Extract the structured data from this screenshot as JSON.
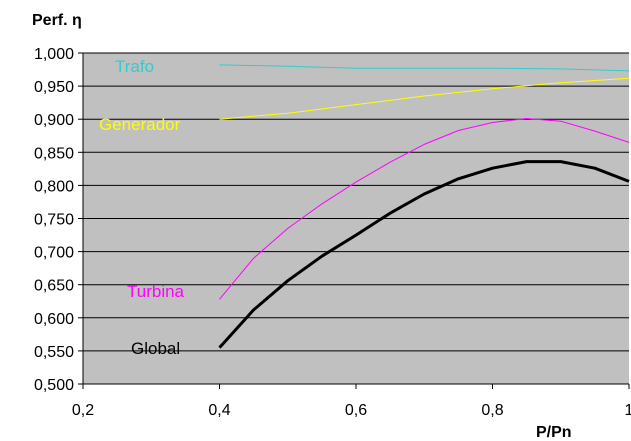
{
  "chart_data": {
    "type": "line",
    "ylabel": "Perf. η",
    "xlabel": "P/Pn",
    "xlim": [
      0.2,
      1
    ],
    "ylim": [
      0.5,
      1.0
    ],
    "x_ticks": [
      "0,2",
      "0,4",
      "0,6",
      "0,8",
      "1"
    ],
    "y_ticks": [
      "0,500",
      "0,550",
      "0,600",
      "0,650",
      "0,700",
      "0,750",
      "0,800",
      "0,850",
      "0,900",
      "0,950",
      "1,000"
    ],
    "grid": true,
    "plot_background": "#c0c0c0",
    "series": [
      {
        "name": "Trafo",
        "color": "#33cccc",
        "width": 1,
        "x": [
          0.4,
          0.5,
          0.6,
          0.7,
          0.8,
          0.9,
          1.0
        ],
        "y": [
          0.982,
          0.98,
          0.977,
          0.977,
          0.977,
          0.976,
          0.973
        ]
      },
      {
        "name": "Generador",
        "color": "#ffff00",
        "width": 1,
        "x": [
          0.4,
          0.5,
          0.6,
          0.7,
          0.8,
          0.9,
          1.0
        ],
        "y": [
          0.9,
          0.909,
          0.922,
          0.935,
          0.946,
          0.955,
          0.962
        ]
      },
      {
        "name": "Turbina",
        "color": "#ff00ff",
        "width": 1,
        "x": [
          0.4,
          0.45,
          0.5,
          0.55,
          0.6,
          0.65,
          0.7,
          0.75,
          0.8,
          0.85,
          0.9,
          0.95,
          1.0
        ],
        "y": [
          0.628,
          0.69,
          0.735,
          0.772,
          0.805,
          0.835,
          0.862,
          0.883,
          0.895,
          0.901,
          0.897,
          0.882,
          0.865
        ]
      },
      {
        "name": "Global",
        "color": "#000000",
        "width": 3,
        "x": [
          0.4,
          0.45,
          0.5,
          0.55,
          0.6,
          0.65,
          0.7,
          0.75,
          0.8,
          0.85,
          0.9,
          0.95,
          1.0
        ],
        "y": [
          0.555,
          0.612,
          0.656,
          0.693,
          0.725,
          0.758,
          0.787,
          0.81,
          0.826,
          0.836,
          0.836,
          0.826,
          0.806
        ]
      }
    ]
  }
}
